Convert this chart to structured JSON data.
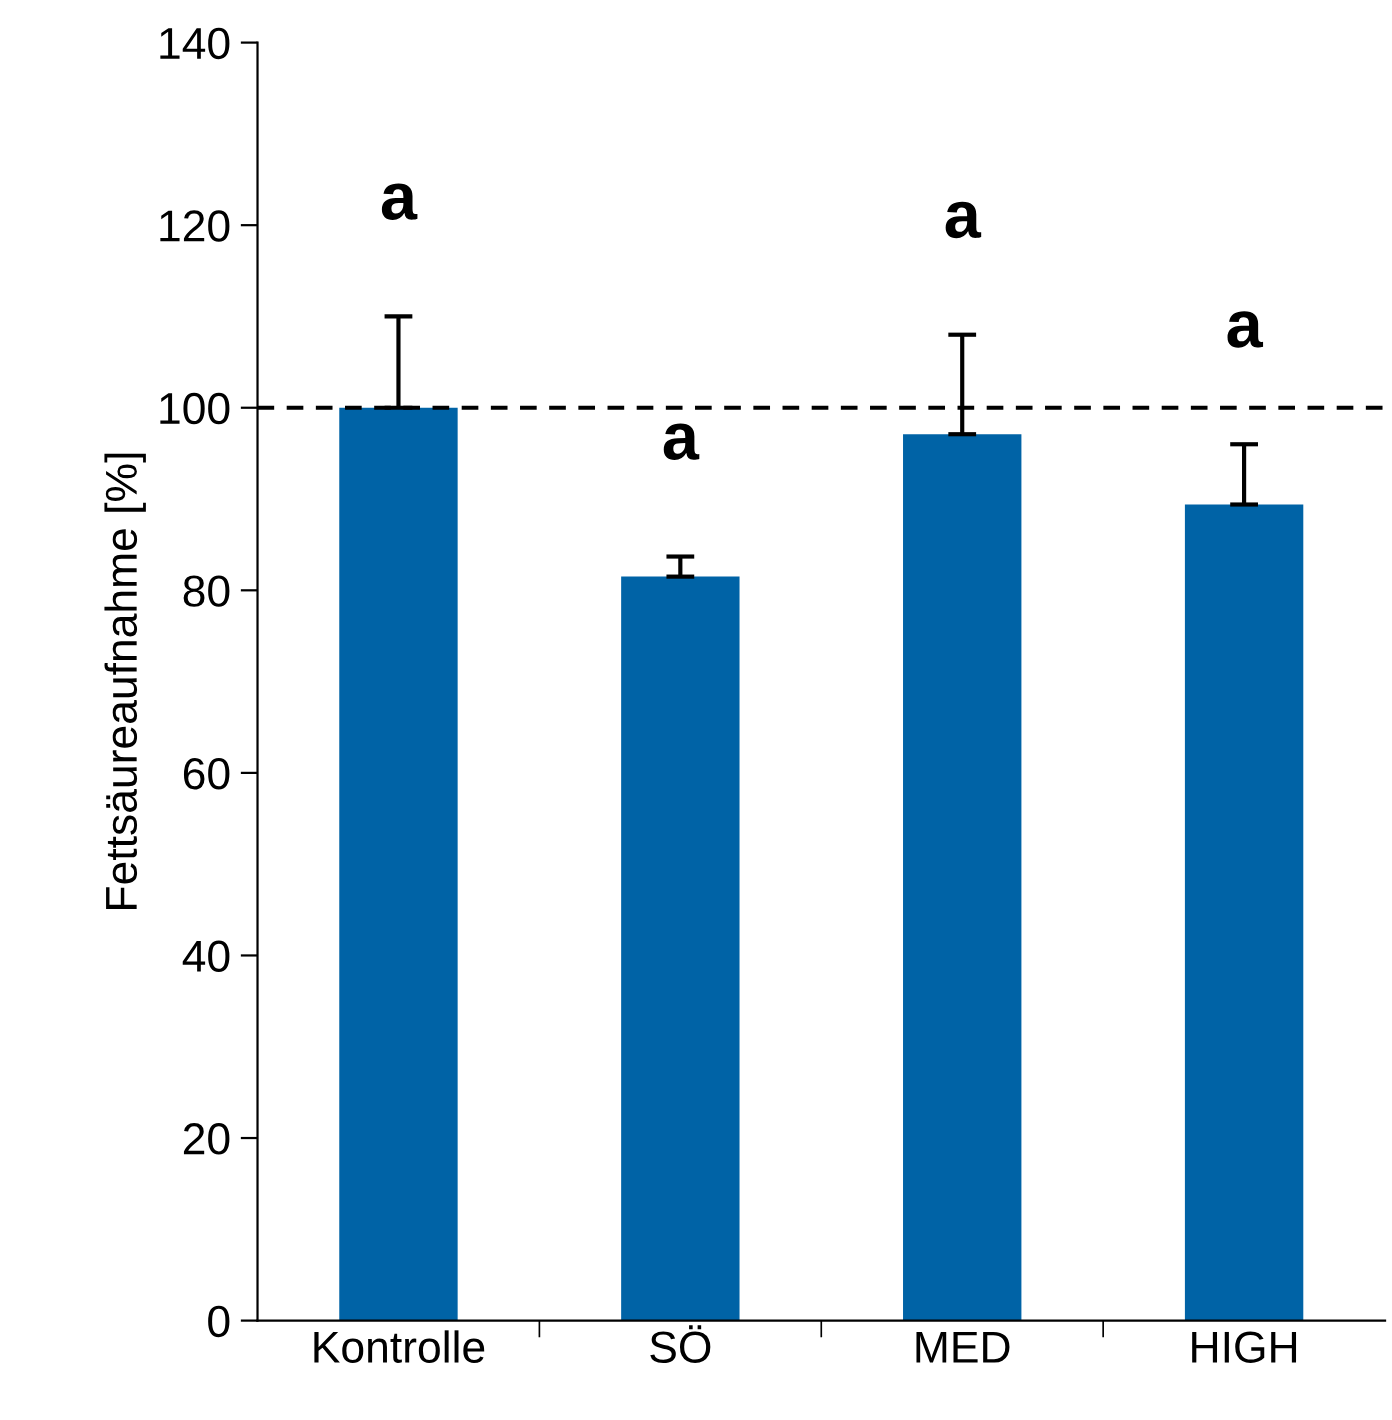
{
  "chart_data": {
    "type": "bar",
    "ylabel": "Fettsäureaufnahme [%]",
    "categories": [
      "Kontrolle",
      "SÖ",
      "MED",
      "HIGH"
    ],
    "values": [
      100,
      81.5,
      97.1,
      89.4
    ],
    "errors": [
      [
        100,
        110
      ],
      [
        81.5,
        83.7
      ],
      [
        97.1,
        108
      ],
      [
        89.4,
        96
      ]
    ],
    "color": "#0063a6",
    "ylim": [
      0,
      140
    ],
    "yticks": [
      0,
      20,
      40,
      60,
      80,
      100,
      120,
      140
    ],
    "grid": false,
    "ref_lines": [
      {
        "axis": "y",
        "value": 100,
        "color": "#000000",
        "line_style": "dashed"
      }
    ],
    "annotations": [
      "a",
      "a",
      "a",
      "a"
    ]
  }
}
